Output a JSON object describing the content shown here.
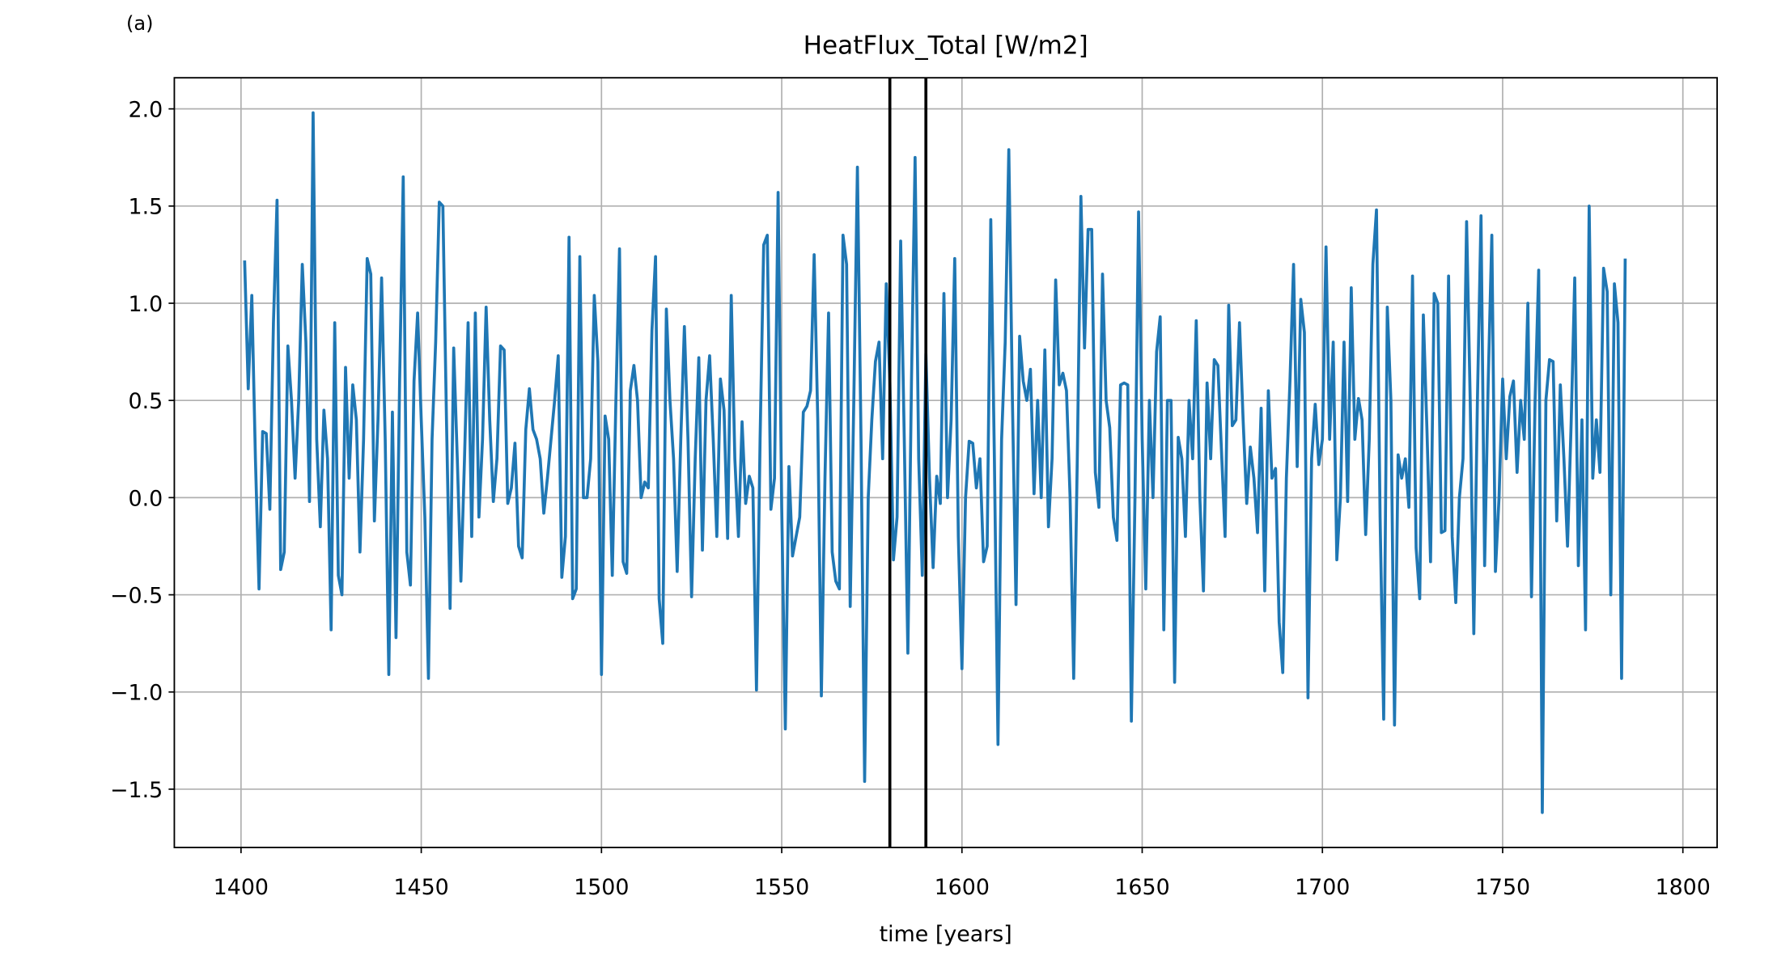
{
  "chart_data": {
    "type": "line",
    "title": "HeatFlux_Total [W/m2]",
    "panel_label": "(a)",
    "xlabel": "time [years]",
    "xlim": [
      1381.5,
      1809.5
    ],
    "ylim": [
      -1.8,
      2.16
    ],
    "xticks": [
      1400,
      1450,
      1500,
      1550,
      1600,
      1650,
      1700,
      1750,
      1800
    ],
    "yticks": [
      {
        "value": -1.5,
        "label": "−1.5"
      },
      {
        "value": -1.0,
        "label": "−1.0"
      },
      {
        "value": -0.5,
        "label": "−0.5"
      },
      {
        "value": 0,
        "label": "0.0"
      },
      0.5,
      {
        "value": 1.0,
        "label": "1.0"
      },
      1.5,
      {
        "value": 2.0,
        "label": "2.0"
      }
    ],
    "grid": true,
    "vlines": [
      1580,
      1590
    ],
    "vline_color": "#000000",
    "x": [
      1401,
      1402,
      1403,
      1404,
      1405,
      1406,
      1407,
      1408,
      1409,
      1410,
      1411,
      1412,
      1413,
      1414,
      1415,
      1416,
      1417,
      1418,
      1419,
      1420,
      1421,
      1422,
      1423,
      1424,
      1425,
      1426,
      1427,
      1428,
      1429,
      1430,
      1431,
      1432,
      1433,
      1434,
      1435,
      1436,
      1437,
      1438,
      1439,
      1440,
      1441,
      1442,
      1443,
      1444,
      1445,
      1446,
      1447,
      1448,
      1449,
      1450,
      1451,
      1452,
      1453,
      1454,
      1455,
      1456,
      1457,
      1458,
      1459,
      1460,
      1461,
      1462,
      1463,
      1464,
      1465,
      1466,
      1467,
      1468,
      1469,
      1470,
      1471,
      1472,
      1473,
      1474,
      1475,
      1476,
      1477,
      1478,
      1479,
      1480,
      1481,
      1482,
      1483,
      1484,
      1485,
      1486,
      1487,
      1488,
      1489,
      1490,
      1491,
      1492,
      1493,
      1494,
      1495,
      1496,
      1497,
      1498,
      1499,
      1500,
      1501,
      1502,
      1503,
      1504,
      1505,
      1506,
      1507,
      1508,
      1509,
      1510,
      1511,
      1512,
      1513,
      1514,
      1515,
      1516,
      1517,
      1518,
      1519,
      1520,
      1521,
      1522,
      1523,
      1524,
      1525,
      1526,
      1527,
      1528,
      1529,
      1530,
      1531,
      1532,
      1533,
      1534,
      1535,
      1536,
      1537,
      1538,
      1539,
      1540,
      1541,
      1542,
      1543,
      1544,
      1545,
      1546,
      1547,
      1548,
      1549,
      1550,
      1551,
      1552,
      1553,
      1554,
      1555,
      1556,
      1557,
      1558,
      1559,
      1560,
      1561,
      1562,
      1563,
      1564,
      1565,
      1566,
      1567,
      1568,
      1569,
      1570,
      1571,
      1572,
      1573,
      1574,
      1575,
      1576,
      1577,
      1578,
      1579,
      1580,
      1581,
      1582,
      1583,
      1584,
      1585,
      1586,
      1587,
      1588,
      1589,
      1590,
      1591,
      1592,
      1593,
      1594,
      1595,
      1596,
      1597,
      1598,
      1599,
      1600,
      1601,
      1602,
      1603,
      1604,
      1605,
      1606,
      1607,
      1608,
      1609,
      1610,
      1611,
      1612,
      1613,
      1614,
      1615,
      1616,
      1617,
      1618,
      1619,
      1620,
      1621,
      1622,
      1623,
      1624,
      1625,
      1626,
      1627,
      1628,
      1629,
      1630,
      1631,
      1632,
      1633,
      1634,
      1635,
      1636,
      1637,
      1638,
      1639,
      1640,
      1641,
      1642,
      1643,
      1644,
      1645,
      1646,
      1647,
      1648,
      1649,
      1650,
      1651,
      1652,
      1653,
      1654,
      1655,
      1656,
      1657,
      1658,
      1659,
      1660,
      1661,
      1662,
      1663,
      1664,
      1665,
      1666,
      1667,
      1668,
      1669,
      1670,
      1671,
      1672,
      1673,
      1674,
      1675,
      1676,
      1677,
      1678,
      1679,
      1680,
      1681,
      1682,
      1683,
      1684,
      1685,
      1686,
      1687,
      1688,
      1689,
      1690,
      1691,
      1692,
      1693,
      1694,
      1695,
      1696,
      1697,
      1698,
      1699,
      1700,
      1701,
      1702,
      1703,
      1704,
      1705,
      1706,
      1707,
      1708,
      1709,
      1710,
      1711,
      1712,
      1713,
      1714,
      1715,
      1716,
      1717,
      1718,
      1719,
      1720,
      1721,
      1722,
      1723,
      1724,
      1725,
      1726,
      1727,
      1728,
      1729,
      1730,
      1731,
      1732,
      1733,
      1734,
      1735,
      1736,
      1737,
      1738,
      1739,
      1740,
      1741,
      1742,
      1743,
      1744,
      1745,
      1746,
      1747,
      1748,
      1749,
      1750,
      1751,
      1752,
      1753,
      1754,
      1755,
      1756,
      1757,
      1758,
      1759,
      1760,
      1761,
      1762,
      1763,
      1764,
      1765,
      1766,
      1767,
      1768,
      1769,
      1770,
      1771,
      1772,
      1773,
      1774,
      1775,
      1776,
      1777,
      1778,
      1779,
      1780,
      1781,
      1782,
      1783,
      1784
    ],
    "series": [
      {
        "color": "#1f77b4",
        "values": [
          1.22,
          0.56,
          1.04,
          0.2,
          -0.47,
          0.34,
          0.33,
          -0.06,
          0.9,
          1.53,
          -0.37,
          -0.28,
          0.78,
          0.5,
          0.1,
          0.5,
          1.2,
          0.8,
          -0.02,
          1.98,
          0.3,
          -0.15,
          0.45,
          0.2,
          -0.68,
          0.9,
          -0.4,
          -0.5,
          0.67,
          0.1,
          0.58,
          0.4,
          -0.28,
          0.3,
          1.23,
          1.15,
          -0.12,
          0.4,
          1.13,
          0.3,
          -0.91,
          0.44,
          -0.72,
          0.6,
          1.65,
          -0.28,
          -0.45,
          0.6,
          0.95,
          0.4,
          -0.1,
          -0.93,
          0.3,
          0.8,
          1.52,
          1.5,
          0.4,
          -0.57,
          0.77,
          0.2,
          -0.43,
          0.2,
          0.9,
          -0.2,
          0.95,
          -0.1,
          0.3,
          0.98,
          0.4,
          -0.02,
          0.2,
          0.78,
          0.76,
          -0.03,
          0.05,
          0.28,
          -0.25,
          -0.31,
          0.35,
          0.56,
          0.35,
          0.3,
          0.2,
          -0.08,
          0.1,
          0.3,
          0.5,
          0.73,
          -0.41,
          -0.2,
          1.34,
          -0.52,
          -0.47,
          1.24,
          0.0,
          0.0,
          0.2,
          1.04,
          0.7,
          -0.91,
          0.42,
          0.3,
          -0.4,
          0.5,
          1.28,
          -0.33,
          -0.39,
          0.55,
          0.68,
          0.5,
          0.0,
          0.08,
          0.05,
          0.86,
          1.24,
          -0.52,
          -0.75,
          0.97,
          0.5,
          0.2,
          -0.38,
          0.3,
          0.88,
          0.3,
          -0.51,
          0.2,
          0.72,
          -0.27,
          0.5,
          0.73,
          0.3,
          -0.2,
          0.61,
          0.45,
          -0.21,
          1.04,
          0.2,
          -0.2,
          0.39,
          -0.03,
          0.11,
          0.05,
          -0.99,
          0.3,
          1.3,
          1.35,
          -0.06,
          0.1,
          1.57,
          -0.05,
          -1.19,
          0.16,
          -0.3,
          -0.2,
          -0.1,
          0.44,
          0.47,
          0.55,
          1.25,
          0.4,
          -1.02,
          0.1,
          0.95,
          -0.28,
          -0.43,
          -0.47,
          1.35,
          1.2,
          -0.56,
          0.5,
          1.7,
          0.3,
          -1.46,
          0.0,
          0.4,
          0.7,
          0.8,
          0.2,
          1.1,
          0.6,
          -0.32,
          -0.1,
          1.32,
          0.3,
          -0.8,
          0.6,
          1.75,
          0.2,
          -0.4,
          0.74,
          0.1,
          -0.36,
          0.11,
          -0.03,
          1.05,
          0.0,
          0.4,
          1.23,
          -0.2,
          -0.88,
          0.0,
          0.29,
          0.28,
          0.05,
          0.2,
          -0.33,
          -0.25,
          1.43,
          0.2,
          -1.27,
          0.3,
          0.8,
          1.79,
          0.5,
          -0.55,
          0.83,
          0.6,
          0.5,
          0.66,
          0.02,
          0.5,
          0.0,
          0.76,
          -0.15,
          0.2,
          1.12,
          0.58,
          0.64,
          0.55,
          0.0,
          -0.93,
          0.2,
          1.55,
          0.77,
          1.38,
          1.38,
          0.13,
          -0.05,
          1.15,
          0.5,
          0.36,
          -0.1,
          -0.22,
          0.58,
          0.59,
          0.58,
          -1.15,
          0.0,
          1.47,
          0.3,
          -0.47,
          0.5,
          0.0,
          0.75,
          0.93,
          -0.68,
          0.5,
          0.5,
          -0.95,
          0.31,
          0.2,
          -0.2,
          0.5,
          0.2,
          0.91,
          0.0,
          -0.48,
          0.59,
          0.2,
          0.71,
          0.68,
          0.24,
          -0.2,
          0.99,
          0.37,
          0.4,
          0.9,
          0.4,
          -0.03,
          0.26,
          0.1,
          -0.18,
          0.46,
          -0.48,
          0.55,
          0.1,
          0.15,
          -0.64,
          -0.9,
          0.1,
          0.6,
          1.2,
          0.16,
          1.02,
          0.85,
          -1.03,
          0.2,
          0.48,
          0.17,
          0.3,
          1.29,
          0.3,
          0.8,
          -0.32,
          0.0,
          0.8,
          -0.02,
          1.08,
          0.3,
          0.51,
          0.4,
          -0.19,
          0.3,
          1.2,
          1.48,
          -0.1,
          -1.14,
          0.98,
          0.5,
          -1.17,
          0.22,
          0.1,
          0.2,
          -0.05,
          1.14,
          -0.26,
          -0.52,
          0.94,
          0.35,
          -0.33,
          1.05,
          1.0,
          -0.18,
          -0.17,
          1.14,
          -0.2,
          -0.54,
          0.0,
          0.2,
          1.42,
          0.5,
          -0.7,
          0.5,
          1.45,
          -0.35,
          0.6,
          1.35,
          -0.38,
          0.0,
          0.61,
          0.2,
          0.52,
          0.6,
          0.13,
          0.5,
          0.3,
          1.0,
          -0.51,
          0.5,
          1.17,
          -1.62,
          0.5,
          0.71,
          0.7,
          -0.12,
          0.58,
          0.2,
          -0.25,
          0.38,
          1.13,
          -0.35,
          0.4,
          -0.68,
          1.5,
          0.1,
          0.4,
          0.13,
          1.18,
          1.06,
          -0.5,
          1.1,
          0.9,
          -0.93,
          1.23
        ]
      }
    ]
  }
}
